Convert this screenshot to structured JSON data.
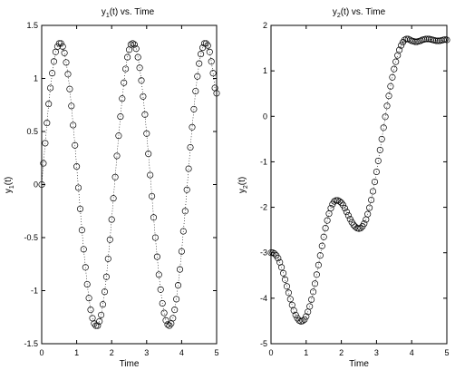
{
  "chart_data": [
    {
      "type": "scatter",
      "title": "y1(t) vs. Time",
      "title_main": "y",
      "title_sub": "1",
      "title_rest": "(t) vs. Time",
      "xlabel": "Time",
      "ylabel_main": "y",
      "ylabel_sub": "1",
      "ylabel_rest": "(t)",
      "xlim": [
        0,
        5
      ],
      "ylim": [
        -1.5,
        1.5
      ],
      "xticks": [
        0,
        1,
        2,
        3,
        4,
        5
      ],
      "xtick_labels": [
        "0",
        "1",
        "2",
        "3",
        "4",
        "5"
      ],
      "yticks": [
        -1.5,
        -1,
        -0.5,
        0,
        0.5,
        1,
        1.5
      ],
      "ytick_labels": [
        "-1.5",
        "-1",
        "-0.5",
        "0",
        "0.5",
        "1",
        "1.5"
      ],
      "grid": false,
      "marker": "open-circle",
      "line": "dotted",
      "series": [
        {
          "x": [
            0,
            0.05,
            0.1,
            0.15,
            0.2,
            0.25,
            0.3,
            0.35,
            0.4,
            0.45,
            0.5,
            0.55,
            0.6,
            0.65,
            0.7,
            0.75,
            0.8,
            0.85,
            0.9,
            0.95,
            1.0,
            1.05,
            1.1,
            1.15,
            1.2,
            1.25,
            1.3,
            1.35,
            1.4,
            1.45,
            1.5,
            1.55,
            1.6,
            1.65,
            1.7,
            1.75,
            1.8,
            1.85,
            1.9,
            1.95,
            2.0,
            2.05,
            2.1,
            2.15,
            2.2,
            2.25,
            2.3,
            2.35,
            2.4,
            2.45,
            2.5,
            2.55,
            2.6,
            2.65,
            2.7,
            2.75,
            2.8,
            2.85,
            2.9,
            2.95,
            3.0,
            3.05,
            3.1,
            3.15,
            3.2,
            3.25,
            3.3,
            3.35,
            3.4,
            3.45,
            3.5,
            3.55,
            3.6,
            3.65,
            3.7,
            3.75,
            3.8,
            3.85,
            3.9,
            3.95,
            4.0,
            4.05,
            4.1,
            4.15,
            4.2,
            4.25,
            4.3,
            4.35,
            4.4,
            4.45,
            4.5,
            4.55,
            4.6,
            4.65,
            4.7,
            4.75,
            4.8,
            4.85,
            4.9,
            4.95,
            5.0
          ],
          "y": [
            0.0,
            0.2,
            0.39,
            0.58,
            0.76,
            0.91,
            1.05,
            1.16,
            1.25,
            1.3,
            1.33,
            1.33,
            1.3,
            1.24,
            1.15,
            1.04,
            0.9,
            0.74,
            0.56,
            0.37,
            0.17,
            -0.03,
            -0.23,
            -0.43,
            -0.61,
            -0.78,
            -0.94,
            -1.07,
            -1.18,
            -1.26,
            -1.31,
            -1.33,
            -1.33,
            -1.29,
            -1.23,
            -1.13,
            -1.01,
            -0.87,
            -0.7,
            -0.52,
            -0.33,
            -0.13,
            0.07,
            0.27,
            0.46,
            0.64,
            0.81,
            0.96,
            1.09,
            1.2,
            1.27,
            1.32,
            1.33,
            1.32,
            1.28,
            1.2,
            1.1,
            0.98,
            0.83,
            0.66,
            0.48,
            0.29,
            0.09,
            -0.11,
            -0.31,
            -0.5,
            -0.68,
            -0.85,
            -0.99,
            -1.12,
            -1.21,
            -1.28,
            -1.32,
            -1.33,
            -1.31,
            -1.26,
            -1.18,
            -1.08,
            -0.95,
            -0.8,
            -0.63,
            -0.44,
            -0.25,
            -0.05,
            0.15,
            0.35,
            0.54,
            0.71,
            0.88,
            1.02,
            1.14,
            1.23,
            1.29,
            1.33,
            1.33,
            1.31,
            1.25,
            1.16,
            1.05,
            0.91,
            0.86
          ]
        }
      ]
    },
    {
      "type": "scatter",
      "title": "y2(t) vs. Time",
      "title_main": "y",
      "title_sub": "2",
      "title_rest": "(t) vs. Time",
      "xlabel": "Time",
      "ylabel_main": "y",
      "ylabel_sub": "2",
      "ylabel_rest": "(t)",
      "xlim": [
        0,
        5
      ],
      "ylim": [
        -5,
        2
      ],
      "xticks": [
        0,
        1,
        2,
        3,
        4,
        5
      ],
      "xtick_labels": [
        "0",
        "1",
        "2",
        "3",
        "4",
        "5"
      ],
      "yticks": [
        -5,
        -4,
        -3,
        -2,
        -1,
        0,
        1,
        2
      ],
      "ytick_labels": [
        "-5",
        "-4",
        "-3",
        "-2",
        "-1",
        "0",
        "1",
        "2"
      ],
      "grid": false,
      "marker": "open-circle",
      "line": "dotted",
      "series": [
        {
          "x": [
            0,
            0.05,
            0.1,
            0.15,
            0.2,
            0.25,
            0.3,
            0.35,
            0.4,
            0.45,
            0.5,
            0.55,
            0.6,
            0.65,
            0.7,
            0.75,
            0.8,
            0.85,
            0.9,
            0.95,
            1.0,
            1.05,
            1.1,
            1.15,
            1.2,
            1.25,
            1.3,
            1.35,
            1.4,
            1.45,
            1.5,
            1.55,
            1.6,
            1.65,
            1.7,
            1.75,
            1.8,
            1.85,
            1.9,
            1.95,
            2.0,
            2.05,
            2.1,
            2.15,
            2.2,
            2.25,
            2.3,
            2.35,
            2.4,
            2.45,
            2.5,
            2.55,
            2.6,
            2.65,
            2.7,
            2.75,
            2.8,
            2.85,
            2.9,
            2.95,
            3.0,
            3.05,
            3.1,
            3.15,
            3.2,
            3.25,
            3.3,
            3.35,
            3.4,
            3.45,
            3.5,
            3.55,
            3.6,
            3.65,
            3.7,
            3.75,
            3.8,
            3.85,
            3.9,
            3.95,
            4.0,
            4.05,
            4.1,
            4.15,
            4.2,
            4.25,
            4.3,
            4.35,
            4.4,
            4.45,
            4.5,
            4.55,
            4.6,
            4.65,
            4.7,
            4.75,
            4.8,
            4.85,
            4.9,
            4.95,
            5.0
          ],
          "y": [
            -3.0,
            -3.0,
            -3.02,
            -3.06,
            -3.12,
            -3.21,
            -3.32,
            -3.45,
            -3.59,
            -3.74,
            -3.88,
            -4.02,
            -4.15,
            -4.27,
            -4.37,
            -4.44,
            -4.49,
            -4.51,
            -4.5,
            -4.47,
            -4.4,
            -4.3,
            -4.18,
            -4.03,
            -3.86,
            -3.68,
            -3.48,
            -3.27,
            -3.06,
            -2.85,
            -2.65,
            -2.46,
            -2.29,
            -2.14,
            -2.02,
            -1.93,
            -1.87,
            -1.85,
            -1.85,
            -1.87,
            -1.9,
            -1.95,
            -2.02,
            -2.1,
            -2.18,
            -2.26,
            -2.33,
            -2.39,
            -2.43,
            -2.46,
            -2.47,
            -2.46,
            -2.42,
            -2.36,
            -2.27,
            -2.15,
            -2.01,
            -1.84,
            -1.65,
            -1.44,
            -1.22,
            -0.98,
            -0.74,
            -0.5,
            -0.25,
            -0.01,
            0.23,
            0.45,
            0.66,
            0.86,
            1.04,
            1.2,
            1.34,
            1.46,
            1.56,
            1.63,
            1.68,
            1.7,
            1.7,
            1.68,
            1.66,
            1.65,
            1.64,
            1.64,
            1.65,
            1.66,
            1.68,
            1.69,
            1.7,
            1.7,
            1.7,
            1.69,
            1.68,
            1.67,
            1.66,
            1.66,
            1.66,
            1.67,
            1.68,
            1.69,
            1.68
          ]
        }
      ]
    }
  ]
}
